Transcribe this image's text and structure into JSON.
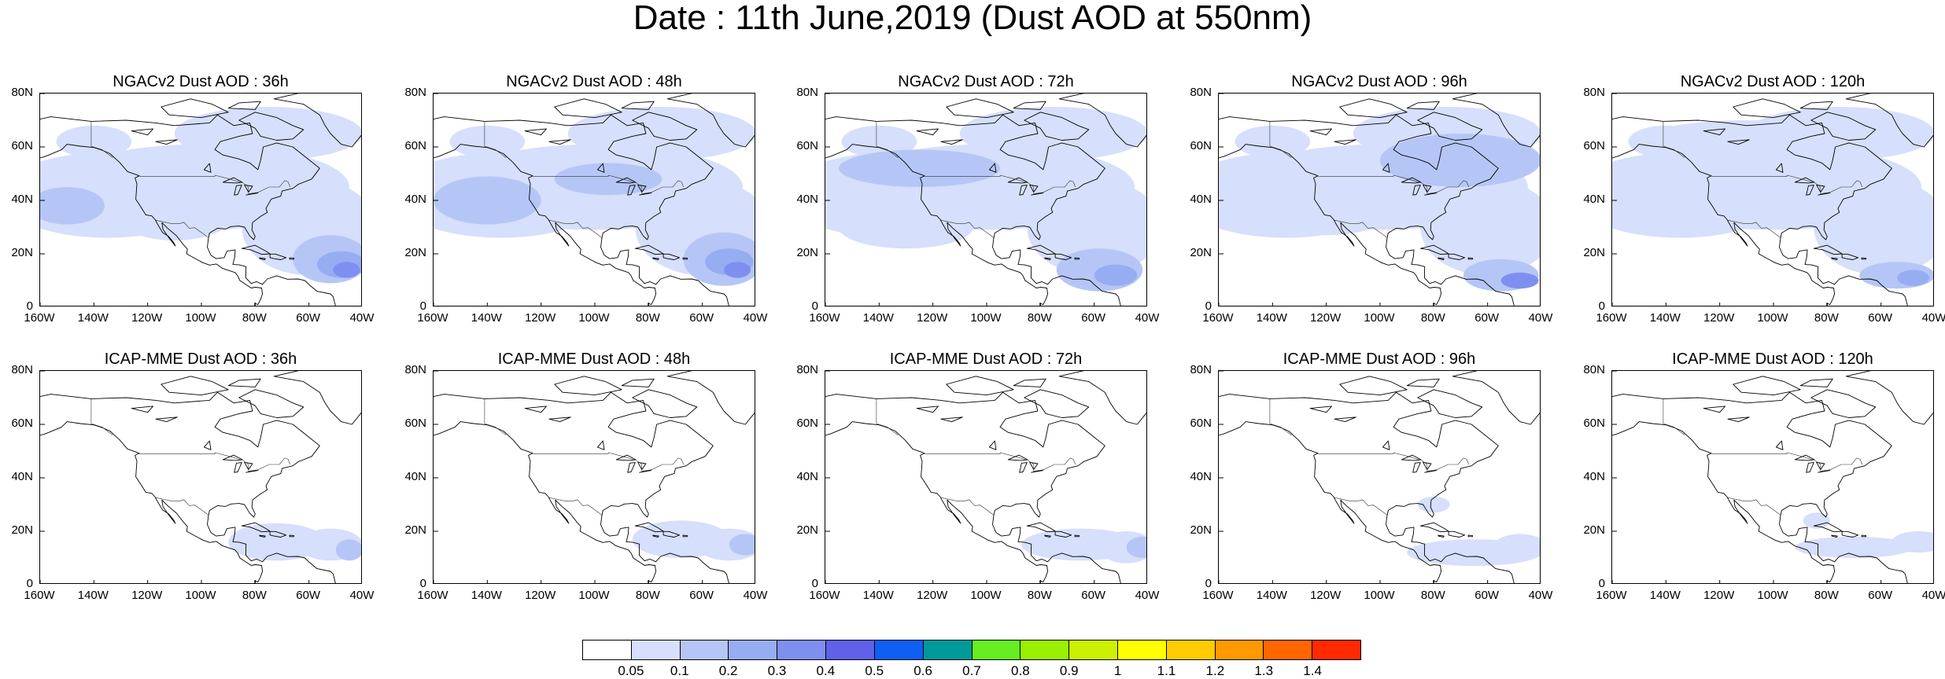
{
  "title": "Date : 11th June,2019 (Dust AOD at 550nm)",
  "lat_labels": [
    "80N",
    "60N",
    "40N",
    "20N",
    "0"
  ],
  "lon_labels": [
    "160W",
    "140W",
    "120W",
    "100W",
    "80W",
    "60W",
    "40W"
  ],
  "panels": [
    {
      "title": "NGACv2 Dust AOD : 36h",
      "model": "NGACv2",
      "lead": "36h"
    },
    {
      "title": "NGACv2 Dust AOD : 48h",
      "model": "NGACv2",
      "lead": "48h"
    },
    {
      "title": "NGACv2 Dust AOD : 72h",
      "model": "NGACv2",
      "lead": "72h"
    },
    {
      "title": "NGACv2 Dust AOD : 96h",
      "model": "NGACv2",
      "lead": "96h"
    },
    {
      "title": "NGACv2 Dust AOD : 120h",
      "model": "NGACv2",
      "lead": "120h"
    },
    {
      "title": "ICAP-MME Dust AOD : 36h",
      "model": "ICAP-MME",
      "lead": "36h"
    },
    {
      "title": "ICAP-MME Dust AOD : 48h",
      "model": "ICAP-MME",
      "lead": "48h"
    },
    {
      "title": "ICAP-MME Dust AOD : 72h",
      "model": "ICAP-MME",
      "lead": "72h"
    },
    {
      "title": "ICAP-MME Dust AOD : 96h",
      "model": "ICAP-MME",
      "lead": "96h"
    },
    {
      "title": "ICAP-MME Dust AOD : 120h",
      "model": "ICAP-MME",
      "lead": "120h"
    }
  ],
  "colorbar": {
    "colors": [
      "#ffffff",
      "#d6dffb",
      "#b5c6f6",
      "#97adf2",
      "#7f8ff0",
      "#6060e8",
      "#0f5ff5",
      "#009a9a",
      "#66ee22",
      "#99f000",
      "#ccf000",
      "#ffff00",
      "#ffcc00",
      "#ff9900",
      "#ff6600",
      "#ff2a00"
    ],
    "labels": [
      "0.05",
      "0.1",
      "0.2",
      "0.3",
      "0.4",
      "0.5",
      "0.6",
      "0.7",
      "0.8",
      "0.9",
      "1",
      "1.1",
      "1.2",
      "1.3",
      "1.4"
    ]
  }
}
